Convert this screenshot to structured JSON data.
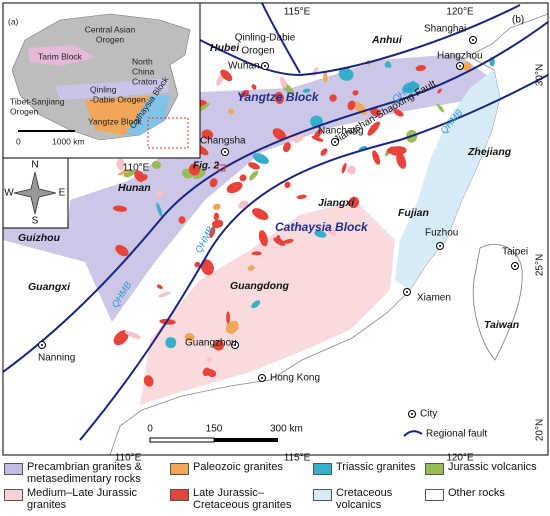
{
  "inset": {
    "label": "(a)",
    "central_asian": [
      "Central Asian",
      "Orogen"
    ],
    "tarim": "Tarim Block",
    "north_china": [
      "North",
      "China",
      "Craton"
    ],
    "qinling": [
      "Qinling",
      "-Dabie Orogen"
    ],
    "tibet": [
      "Tibet-Sanjiang",
      "Orogen"
    ],
    "yangtze": "Yangtze Block",
    "cathaysia": "Cathaysia Block",
    "scale": [
      "0",
      "1000 km"
    ]
  },
  "map": {
    "label": "(b)",
    "lon_top": [
      "115°E",
      "120°E"
    ],
    "lon_inner": "110°E",
    "lon_bottom": [
      "110°E",
      "115°E",
      "120°E"
    ],
    "lat": [
      "30°N",
      "25°N",
      "20°N"
    ],
    "orogen": [
      "Qinling-Dabie",
      "Orogen"
    ],
    "yangtze_block": "Yangtze Block",
    "cathaysia_block": "Cathaysia Block",
    "qhmb": [
      "QHMB",
      "QHMB",
      "QHMB",
      "QHMB"
    ],
    "fault": "Jiangshan-Shaoxing Fault",
    "fig": "Fig. 2",
    "provinces": {
      "hubei": "Hubei",
      "anhui": "Anhui",
      "zhejiang": "Zhejiang",
      "hunan": "Hunan",
      "jiangxi": "Jiangxi",
      "fujian": "Fujian",
      "guizhou": "Guizhou",
      "guangxi": "Guangxi",
      "guangdong": "Guangdong",
      "taiwan": "Taiwan"
    },
    "cities": {
      "wuhan": "Wuhan",
      "shanghai": "Shanghai",
      "hangzhou": "Hangzhou",
      "nanchang": "Nanchang",
      "changsha": "Changsha",
      "fuzhou": "Fuzhou",
      "taipei": "Taipei",
      "xiamen": "Xiamen",
      "guangzhou": "Guangzhou",
      "hongkong": "Hong Kong",
      "nanning": "Nanning"
    },
    "compass": [
      "N",
      "S",
      "W",
      "E"
    ],
    "scale": [
      "0",
      "150",
      "300 km"
    ],
    "key": [
      "City",
      "Regional fault"
    ]
  },
  "legend": [
    "Precambrian granites & metasedimentary rocks",
    "Paleozoic granites",
    "Triassic granites",
    "Jurassic volcanics",
    "Medium–Late Jurassic granites",
    "Late Jurassic–Cretaceous granites",
    "Cretaceous volcanics",
    "Other rocks"
  ]
}
